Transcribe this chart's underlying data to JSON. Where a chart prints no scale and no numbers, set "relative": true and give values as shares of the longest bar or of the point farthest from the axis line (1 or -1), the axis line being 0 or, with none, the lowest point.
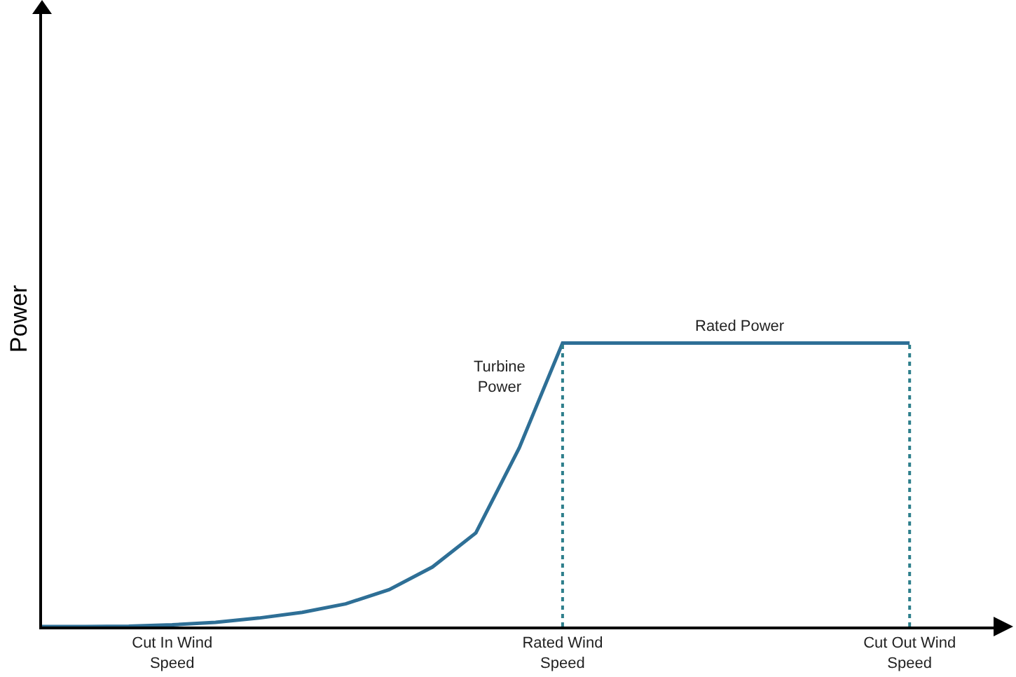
{
  "chart_data": {
    "type": "line",
    "relative": true,
    "ylabel": "Power",
    "categories": [
      null,
      null,
      null,
      "Cut In Wind Speed",
      null,
      null,
      null,
      null,
      null,
      null,
      null,
      null,
      "Rated Wind Speed",
      null,
      null,
      null,
      null,
      null,
      null,
      null,
      "Cut Out Wind Speed",
      null,
      null
    ],
    "series": [
      {
        "color": "#2e6f96",
        "values": [
          0,
          0,
          0.001,
          0.006,
          0.015,
          0.03,
          0.05,
          0.08,
          0.13,
          0.21,
          0.33,
          0.63,
          1,
          1,
          1,
          1,
          1,
          1,
          1,
          1,
          1,
          null,
          null
        ]
      }
    ],
    "ref_lines": [
      {
        "axis": "x",
        "value": "Rated Wind Speed",
        "color": "#2e7f8c",
        "line_style": "dotted"
      },
      {
        "axis": "x",
        "value": "Cut Out Wind Speed",
        "color": "#2e7f8c",
        "line_style": "dotted"
      }
    ],
    "annotations": [
      "Turbine Power",
      "Rated Power"
    ],
    "grid": false,
    "marker": "none",
    "line_style": "solid"
  }
}
